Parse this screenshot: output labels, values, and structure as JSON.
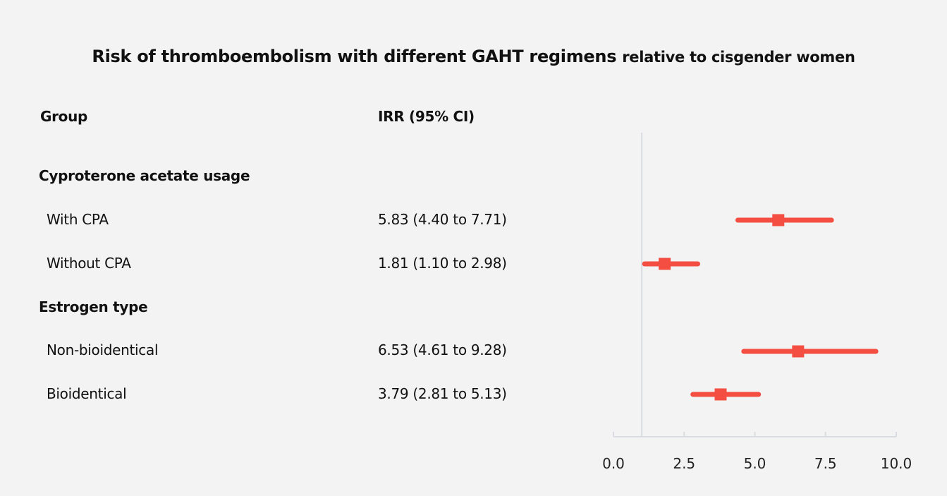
{
  "chart_data": {
    "type": "forest",
    "title": "Risk of thromboembolism with different GAHT regimens",
    "subtitle": "relative to cisgender women",
    "columns": {
      "group": "Group",
      "estimate": "IRR (95% CI)"
    },
    "sections": [
      {
        "label": "Cyproterone acetate usage",
        "rows": [
          {
            "label": "With CPA",
            "text": "5.83 (4.40 to 7.71)",
            "est": 5.83,
            "lo": 4.4,
            "hi": 7.71
          },
          {
            "label": "Without CPA",
            "text": "1.81 (1.10 to 2.98)",
            "est": 1.81,
            "lo": 1.1,
            "hi": 2.98
          }
        ]
      },
      {
        "label": "Estrogen type",
        "rows": [
          {
            "label": "Non-bioidentical",
            "text": "6.53 (4.61 to 9.28)",
            "est": 6.53,
            "lo": 4.61,
            "hi": 9.28
          },
          {
            "label": "Bioidentical",
            "text": "3.79 (2.81 to 5.13)",
            "est": 3.79,
            "lo": 2.81,
            "hi": 5.13
          }
        ]
      }
    ],
    "xlim": [
      0,
      10
    ],
    "xticks": [
      "0.0",
      "2.5",
      "5.0",
      "7.5",
      "10.0"
    ],
    "reference_line": 1,
    "color": "#f44e42",
    "grid": false
  }
}
